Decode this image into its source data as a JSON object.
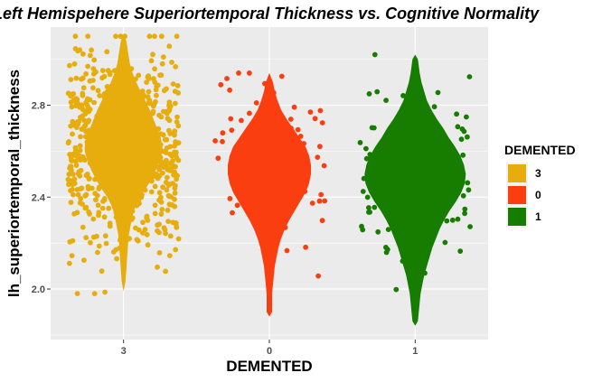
{
  "chart_data": {
    "type": "violin",
    "title": "Left Hemispehere Superiortemporal Thickness vs. Cognitive Normality",
    "xlabel": "DEMENTED",
    "ylabel": "lh_superiortemporal_thickness",
    "categories": [
      "3",
      "0",
      "1"
    ],
    "yticks": [
      2.0,
      2.4,
      2.8
    ],
    "ylim": [
      1.78,
      3.14
    ],
    "grid": true,
    "legend": {
      "title": "DEMENTED",
      "position": "right",
      "entries": [
        "3",
        "0",
        "1"
      ]
    },
    "series": [
      {
        "category": "3",
        "color": "#E6AD0C",
        "point_count": 700,
        "jitter_min": 1.98,
        "jitter_max": 3.1,
        "violin_min": 1.99,
        "violin_max": 3.11,
        "mode": 2.6
      },
      {
        "category": "0",
        "color": "#FA3E10",
        "point_count": 70,
        "jitter_min": 1.9,
        "jitter_max": 2.94,
        "violin_min": 1.88,
        "violin_max": 2.94,
        "mode": 2.52
      },
      {
        "category": "1",
        "color": "#177D00",
        "point_count": 110,
        "jitter_min": 1.84,
        "jitter_max": 3.02,
        "violin_min": 1.84,
        "violin_max": 3.02,
        "mode": 2.48
      }
    ]
  }
}
